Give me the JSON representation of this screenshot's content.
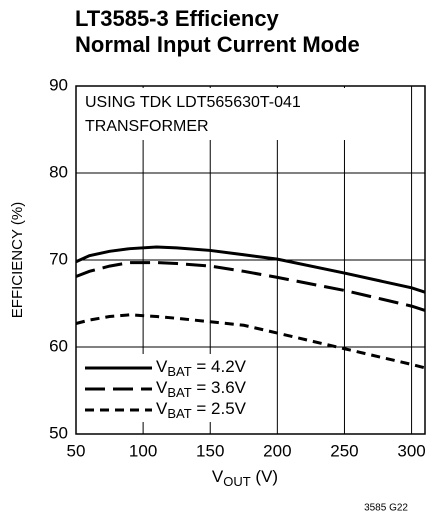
{
  "chart_data": {
    "type": "line",
    "title": [
      "LT3585-3 Efficiency",
      "Normal Input Current Mode"
    ],
    "annotation": [
      "USING TDK LDT565630T-041",
      "TRANSFORMER"
    ],
    "x_label": "VOUT (V)",
    "y_label": "EFFICIENCY (%)",
    "footnote": "3585 G22",
    "xlim": [
      50,
      310
    ],
    "xticks": [
      50,
      100,
      150,
      200,
      250,
      300
    ],
    "ylim": [
      50,
      90
    ],
    "yticks": [
      50,
      60,
      70,
      80,
      90
    ],
    "grid": true,
    "x": [
      50,
      60,
      75,
      90,
      110,
      125,
      150,
      175,
      200,
      250,
      300,
      310
    ],
    "series": [
      {
        "name": "VBAT = 4.2V",
        "color": "#000000",
        "dash": "solid",
        "values": [
          69.8,
          70.5,
          71.0,
          71.3,
          71.5,
          71.4,
          71.1,
          70.6,
          70.1,
          68.5,
          66.8,
          66.3
        ]
      },
      {
        "name": "VBAT = 3.6V",
        "color": "#000000",
        "dash": "long",
        "values": [
          68.1,
          68.7,
          69.3,
          69.7,
          69.7,
          69.6,
          69.3,
          68.7,
          68.0,
          66.5,
          64.7,
          64.2
        ]
      },
      {
        "name": "VBAT = 2.5V",
        "color": "#000000",
        "dash": "short",
        "values": [
          62.7,
          63.1,
          63.5,
          63.7,
          63.5,
          63.3,
          62.9,
          62.5,
          61.6,
          59.8,
          58.0,
          57.6
        ]
      }
    ]
  }
}
